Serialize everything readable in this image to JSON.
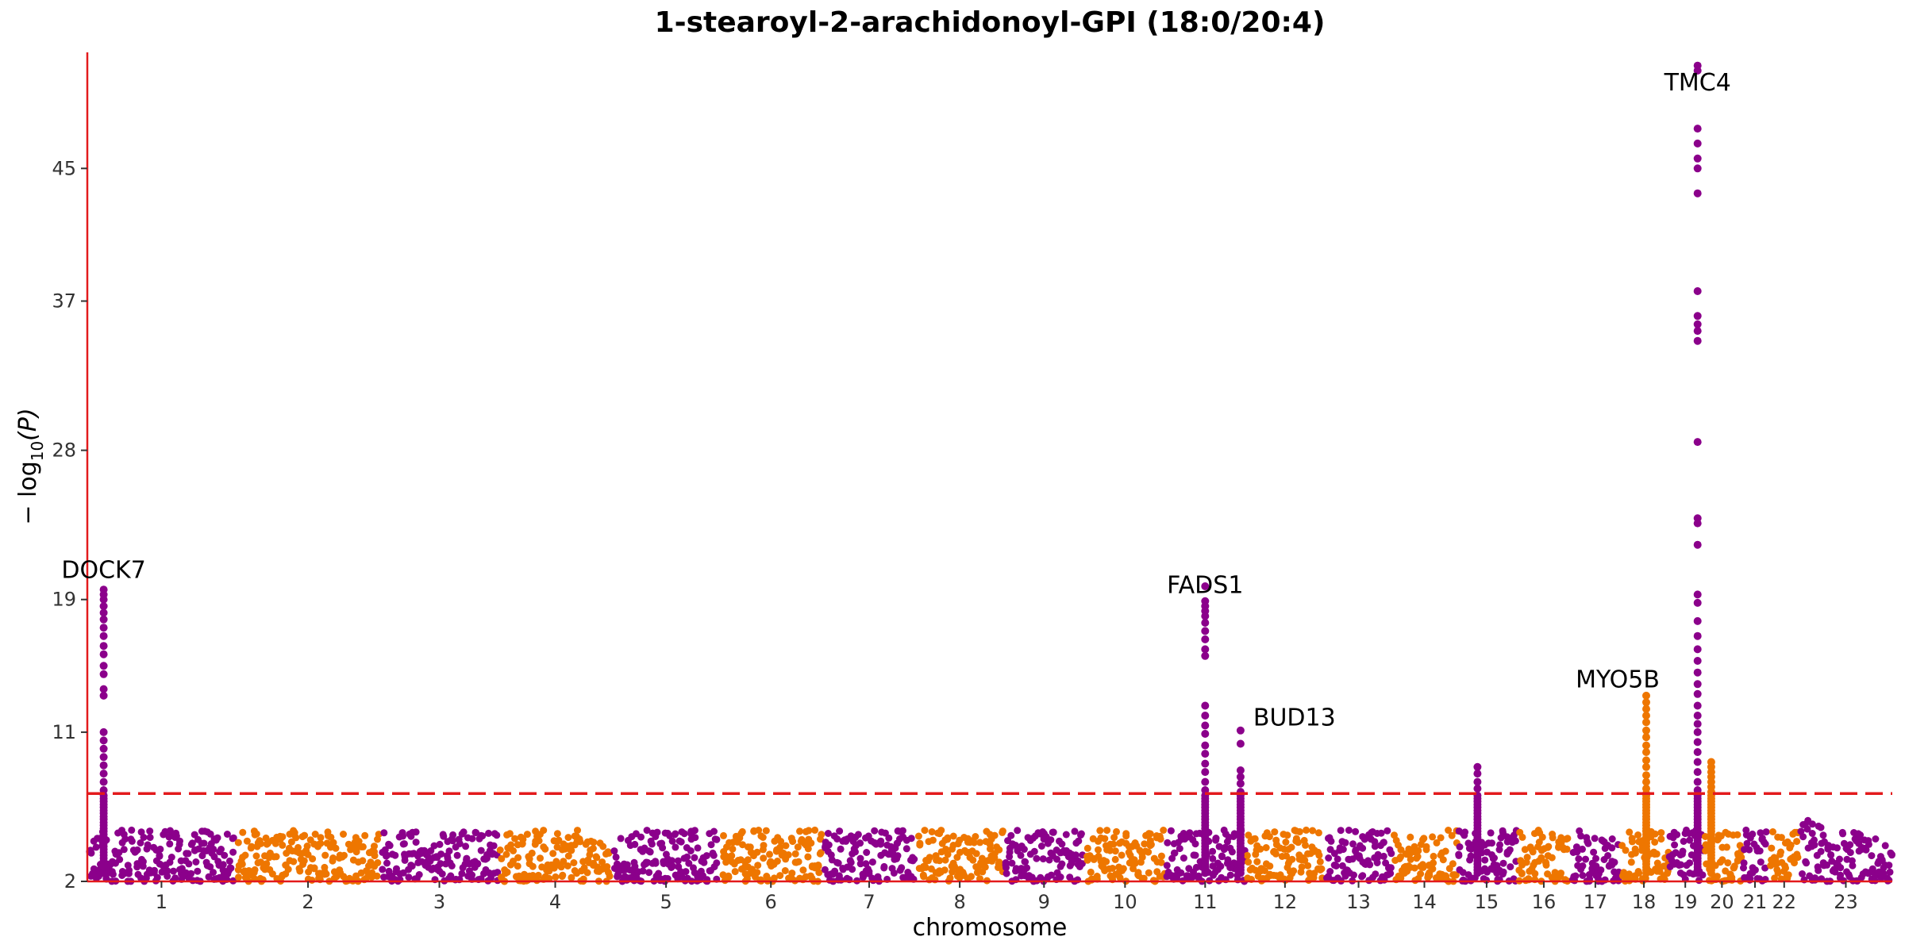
{
  "chart_data": {
    "type": "scatter",
    "subtype": "manhattan",
    "title": "1-stearoyl-2-arachidonoyl-GPI (18:0/20:4)",
    "xlabel": "chromosome",
    "ylabel_main": "− log",
    "ylabel_sub": "10",
    "ylabel_tail": "(P)",
    "ylim": [
      2,
      52
    ],
    "yticks": [
      2,
      11,
      19,
      28,
      37,
      45
    ],
    "significance_threshold": 7.3,
    "colors": {
      "odd": "#8b008b",
      "even": "#ee7600",
      "axis": "#e31a1c",
      "threshold": "#e31a1c"
    },
    "chromosomes": [
      {
        "label": "1",
        "size": 249
      },
      {
        "label": "2",
        "size": 243
      },
      {
        "label": "3",
        "size": 198
      },
      {
        "label": "4",
        "size": 191
      },
      {
        "label": "5",
        "size": 181
      },
      {
        "label": "6",
        "size": 171
      },
      {
        "label": "7",
        "size": 159
      },
      {
        "label": "8",
        "size": 145
      },
      {
        "label": "9",
        "size": 138
      },
      {
        "label": "10",
        "size": 134
      },
      {
        "label": "11",
        "size": 135
      },
      {
        "label": "12",
        "size": 133
      },
      {
        "label": "13",
        "size": 114
      },
      {
        "label": "14",
        "size": 107
      },
      {
        "label": "15",
        "size": 102
      },
      {
        "label": "16",
        "size": 90
      },
      {
        "label": "17",
        "size": 83
      },
      {
        "label": "18",
        "size": 80
      },
      {
        "label": "19",
        "size": 59
      },
      {
        "label": "20",
        "size": 64
      },
      {
        "label": "21",
        "size": 47
      },
      {
        "label": "22",
        "size": 51
      },
      {
        "label": "23",
        "size": 156
      }
    ],
    "peaks": [
      {
        "chrom": "1",
        "pos": 0.11,
        "values": [
          19.6,
          19.3,
          19.0,
          18.6,
          18.2,
          17.8,
          17.3,
          16.8,
          16.2,
          15.7,
          15.0,
          14.5,
          13.6,
          13.2,
          11.0,
          10.5,
          10.0,
          9.5,
          9.0,
          8.5,
          8.0,
          7.5
        ]
      },
      {
        "chrom": "11",
        "pos": 0.5,
        "values": [
          19.8,
          18.9,
          18.6,
          18.3,
          18.0,
          17.6,
          17.1,
          16.6,
          16.0,
          15.6,
          12.6,
          12.0,
          11.4,
          10.9,
          10.2,
          9.7,
          9.1,
          8.6,
          8.0,
          7.5
        ]
      },
      {
        "chrom": "11",
        "pos": 0.94,
        "values": [
          11.1,
          10.3,
          8.7,
          8.3,
          7.9,
          7.4
        ]
      },
      {
        "chrom": "15",
        "pos": 0.35,
        "values": [
          8.9,
          8.5,
          8.0,
          7.6
        ]
      },
      {
        "chrom": "18",
        "pos": 0.55,
        "values": [
          13.2,
          12.8,
          12.4,
          12.0,
          11.6,
          11.1,
          10.7,
          10.2,
          9.8,
          9.3,
          8.9,
          8.4,
          8.0,
          7.6,
          7.3
        ]
      },
      {
        "chrom": "19",
        "pos": 0.85,
        "values": [
          51.2,
          50.9,
          47.4,
          46.5,
          45.6,
          45.0,
          43.5,
          37.6,
          36.1,
          35.6,
          35.2,
          34.6,
          28.5,
          23.9,
          23.6,
          22.3,
          19.3,
          18.8,
          17.7,
          16.8,
          16.0,
          15.3,
          14.6,
          13.9,
          13.3,
          12.6,
          12.0,
          11.5,
          11.0,
          10.4,
          9.8,
          9.2,
          8.6,
          8.0,
          7.5
        ]
      },
      {
        "chrom": "20",
        "pos": 0.22,
        "values": [
          9.2,
          8.9,
          8.6,
          8.3,
          8.0,
          7.7,
          7.4
        ]
      }
    ],
    "annotations": [
      {
        "text": "DOCK7",
        "chrom": "1",
        "pos": 0.11,
        "y": 20.3,
        "anchor": "middle"
      },
      {
        "text": "FADS1",
        "chrom": "11",
        "pos": 0.5,
        "y": 19.4,
        "anchor": "middle"
      },
      {
        "text": "BUD13",
        "chrom": "11",
        "pos": 0.94,
        "y": 11.4,
        "anchor": "start"
      },
      {
        "text": "MYO5B",
        "chrom": "18",
        "pos": -0.05,
        "y": 13.7,
        "anchor": "middle"
      },
      {
        "text": "TMC4",
        "chrom": "19",
        "pos": 0.85,
        "y": 49.7,
        "anchor": "middle"
      }
    ]
  }
}
